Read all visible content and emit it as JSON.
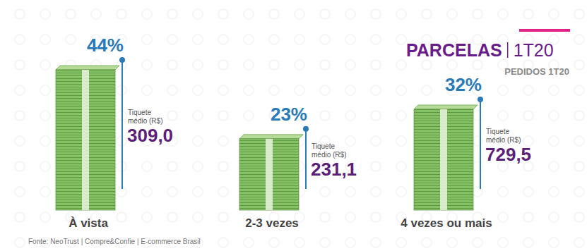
{
  "chart_data": {
    "type": "bar",
    "title": "PARCELAS",
    "title_period": "1T20",
    "subtitle": "PEDIDOS 1T20",
    "source": "Fonte: NeoTrust | Compre&Confie | E-commerce Brasil",
    "categories": [
      "À vista",
      "2-3 vezes",
      "4 vezes ou mais"
    ],
    "values": [
      44,
      23,
      32
    ],
    "value_labels": [
      "44%",
      "23%",
      "32%"
    ],
    "ticket_label": "Tiquete médio (R$)",
    "ticket_values": [
      309.0,
      231.1,
      729.5
    ],
    "ticket_value_labels": [
      "309,0",
      "231,1",
      "729,5"
    ],
    "color": "#86c064",
    "data_labels": true,
    "tick_labels": false
  }
}
